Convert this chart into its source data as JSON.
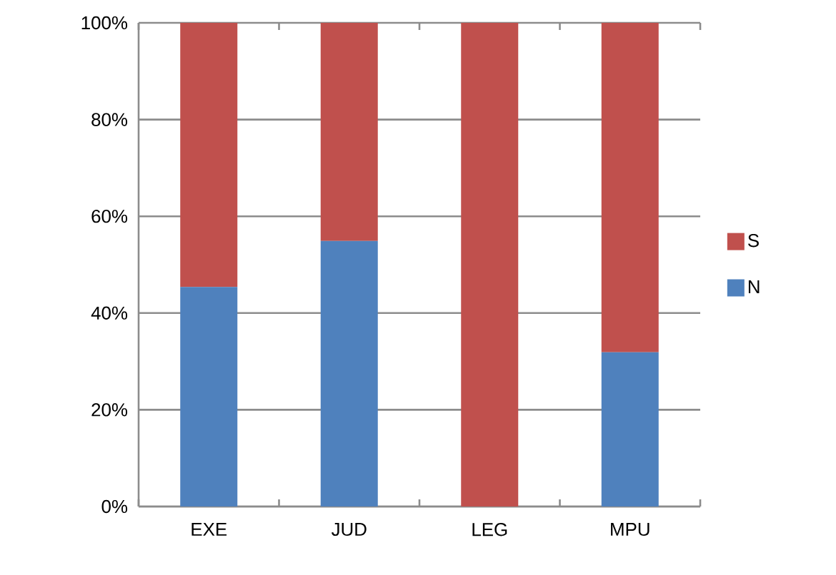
{
  "chart_data": {
    "type": "bar",
    "stacked": true,
    "categories": [
      "EXE",
      "JUD",
      "LEG",
      "MPU"
    ],
    "series": [
      {
        "name": "N",
        "color": "#4f81bd",
        "values": [
          45.4,
          54.9,
          0,
          31.9
        ]
      },
      {
        "name": "S",
        "color": "#c0504d",
        "values": [
          54.6,
          45.1,
          100,
          68.1
        ]
      }
    ],
    "ylim": [
      0,
      100
    ],
    "yticks": [
      {
        "value": 0,
        "label": "0%"
      },
      {
        "value": 20,
        "label": "20%"
      },
      {
        "value": 40,
        "label": "40%"
      },
      {
        "value": 60,
        "label": "60%"
      },
      {
        "value": 80,
        "label": "80%"
      },
      {
        "value": 100,
        "label": "100%"
      }
    ],
    "grid": "y",
    "legend": "right"
  }
}
